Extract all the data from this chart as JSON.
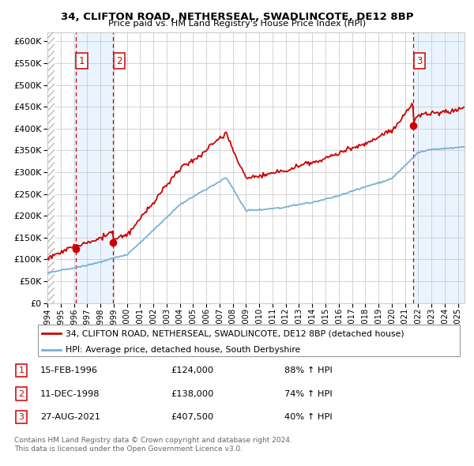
{
  "title1": "34, CLIFTON ROAD, NETHERSEAL, SWADLINCOTE, DE12 8BP",
  "title2": "Price paid vs. HM Land Registry's House Price Index (HPI)",
  "ylim": [
    0,
    620000
  ],
  "yticks": [
    0,
    50000,
    100000,
    150000,
    200000,
    250000,
    300000,
    350000,
    400000,
    450000,
    500000,
    550000,
    600000
  ],
  "xlim_start": 1994.0,
  "xlim_end": 2025.5,
  "purchase_dates": [
    1996.12,
    1998.95,
    2021.65
  ],
  "purchase_prices": [
    124000,
    138000,
    407500
  ],
  "purchase_labels": [
    "1",
    "2",
    "3"
  ],
  "hpi_line_color": "#7ab0d4",
  "price_line_color": "#cc0000",
  "purchase_dot_color": "#cc0000",
  "vline_color": "#cc0000",
  "shade_color": "#ddeeff",
  "grid_color": "#cccccc",
  "legend_line1": "34, CLIFTON ROAD, NETHERSEAL, SWADLINCOTE, DE12 8BP (detached house)",
  "legend_line2": "HPI: Average price, detached house, South Derbyshire",
  "table_rows": [
    {
      "num": "1",
      "date": "15-FEB-1996",
      "price": "£124,000",
      "change": "88% ↑ HPI"
    },
    {
      "num": "2",
      "date": "11-DEC-1998",
      "price": "£138,000",
      "change": "74% ↑ HPI"
    },
    {
      "num": "3",
      "date": "27-AUG-2021",
      "price": "£407,500",
      "change": "40% ↑ HPI"
    }
  ],
  "footnote1": "Contains HM Land Registry data © Crown copyright and database right 2024.",
  "footnote2": "This data is licensed under the Open Government Licence v3.0."
}
